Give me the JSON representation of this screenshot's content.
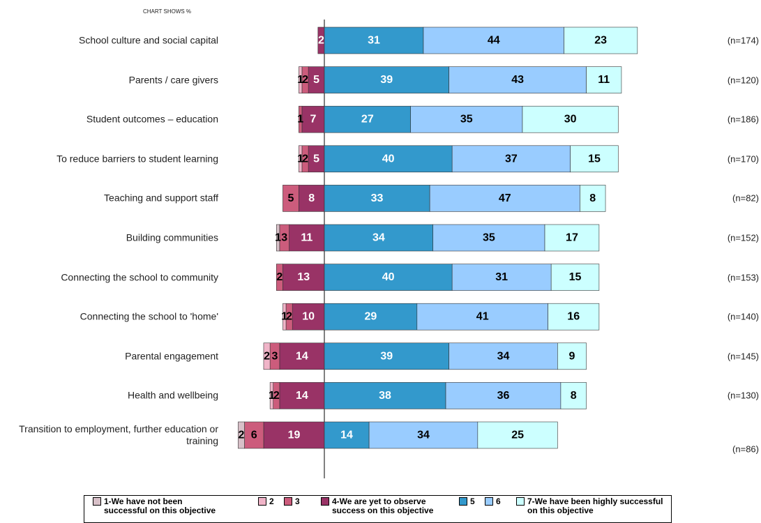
{
  "chart_data": {
    "type": "diverging_bar",
    "subtitle": "CHART SHOWS %",
    "categories": [
      "School culture and social capital",
      "Parents / care givers",
      "Student outcomes – education",
      "To reduce barriers to student learning",
      "Teaching and support staff",
      "Building communities",
      "Connecting the school to community",
      "Connecting the school to 'home'",
      "Parental engagement",
      "Health and wellbeing",
      "Transition to employment, further education or training"
    ],
    "n_labels": [
      "(n=174)",
      "(n=120)",
      "(n=186)",
      "(n=170)",
      "(n=82)",
      "(n=152)",
      "(n=153)",
      "(n=140)",
      "(n=145)",
      "(n=130)",
      "(n=86)"
    ],
    "series": [
      {
        "name": "1-We have not been successful on this objective",
        "color": "#d8c0c8",
        "side": "negative",
        "values": [
          0,
          0,
          0,
          0,
          0,
          1,
          0,
          0,
          0,
          0,
          2
        ]
      },
      {
        "name": "2",
        "color": "#f0b4c8",
        "side": "negative",
        "values": [
          0,
          1,
          0,
          1,
          0,
          0,
          0,
          1,
          2,
          1,
          0
        ]
      },
      {
        "name": "3",
        "color": "#cc5c7c",
        "side": "negative",
        "values": [
          0,
          2,
          1,
          2,
          5,
          3,
          2,
          2,
          3,
          2,
          6
        ]
      },
      {
        "name": "4-We are yet to observe success on this objective",
        "color": "#993366",
        "side": "negative",
        "values": [
          2,
          5,
          7,
          5,
          8,
          11,
          13,
          10,
          14,
          14,
          19
        ]
      },
      {
        "name": "5",
        "color": "#3399cc",
        "side": "positive",
        "values": [
          31,
          39,
          27,
          40,
          33,
          34,
          40,
          29,
          39,
          38,
          14
        ]
      },
      {
        "name": "6",
        "color": "#99ccff",
        "side": "positive",
        "values": [
          44,
          43,
          35,
          37,
          47,
          35,
          31,
          41,
          34,
          36,
          34
        ]
      },
      {
        "name": "7-We have been highly successful on this objective",
        "color": "#ccffff",
        "side": "positive",
        "values": [
          23,
          11,
          30,
          15,
          8,
          17,
          15,
          16,
          9,
          8,
          25
        ]
      }
    ]
  }
}
